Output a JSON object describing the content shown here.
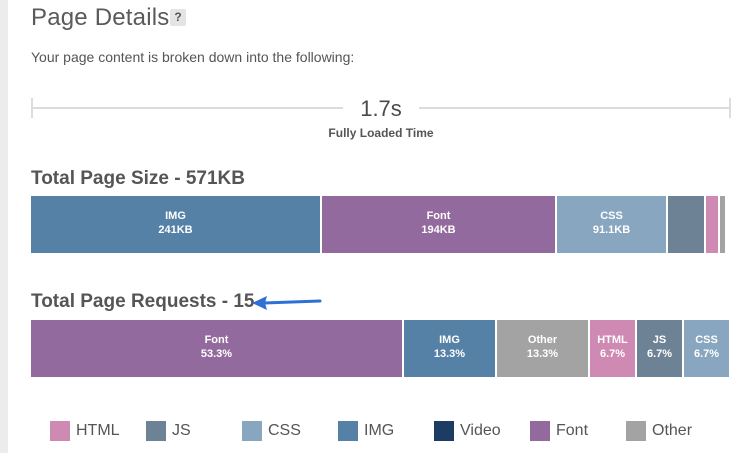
{
  "header": {
    "title": "Page Details",
    "help_label": "?",
    "subtitle": "Your page content is broken down into the following:"
  },
  "timeline": {
    "value": "1.7s",
    "label": "Fully Loaded Time"
  },
  "colors": {
    "HTML": "#cf8ab4",
    "JS": "#6e8296",
    "CSS": "#88a6bf",
    "IMG": "#5581a6",
    "Video": "#1c3c64",
    "Font": "#936a9e",
    "Other": "#a3a3a3",
    "arrow": "#2f6fd6"
  },
  "page_size": {
    "title": "Total Page Size - 571KB",
    "segments": [
      {
        "type": "IMG",
        "label": "IMG",
        "value": "241KB",
        "fraction": 0.4158
      },
      {
        "type": "Font",
        "label": "Font",
        "value": "194KB",
        "fraction": 0.3357
      },
      {
        "type": "CSS",
        "label": "CSS",
        "value": "91.1KB",
        "fraction": 0.1586
      },
      {
        "type": "JS",
        "label": "",
        "value": "",
        "fraction": 0.0543
      },
      {
        "type": "HTML",
        "label": "",
        "value": "",
        "fraction": 0.02
      },
      {
        "type": "Other",
        "label": "",
        "value": "",
        "fraction": 0.01
      }
    ]
  },
  "page_requests": {
    "title": "Total Page Requests - 15",
    "segments": [
      {
        "type": "Font",
        "label": "Font",
        "value": "53.3%",
        "fraction": 0.533
      },
      {
        "type": "IMG",
        "label": "IMG",
        "value": "13.3%",
        "fraction": 0.133
      },
      {
        "type": "Other",
        "label": "Other",
        "value": "13.3%",
        "fraction": 0.133
      },
      {
        "type": "HTML",
        "label": "HTML",
        "value": "6.7%",
        "fraction": 0.067
      },
      {
        "type": "JS",
        "label": "JS",
        "value": "6.7%",
        "fraction": 0.067
      },
      {
        "type": "CSS",
        "label": "CSS",
        "value": "6.7%",
        "fraction": 0.067
      }
    ]
  },
  "legend": [
    {
      "type": "HTML",
      "label": "HTML"
    },
    {
      "type": "JS",
      "label": "JS"
    },
    {
      "type": "CSS",
      "label": "CSS"
    },
    {
      "type": "IMG",
      "label": "IMG"
    },
    {
      "type": "Video",
      "label": "Video"
    },
    {
      "type": "Font",
      "label": "Font"
    },
    {
      "type": "Other",
      "label": "Other"
    }
  ]
}
